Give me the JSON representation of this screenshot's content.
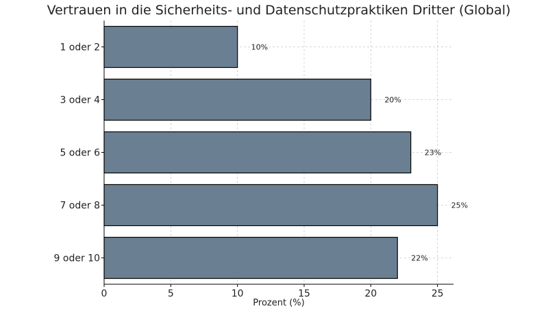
{
  "chart_data": {
    "type": "bar",
    "orientation": "horizontal",
    "title": "Vertrauen in die Sicherheits- und Datenschutzpraktiken Dritter (Global)",
    "xlabel": "Prozent (%)",
    "ylabel": "",
    "categories": [
      "1 oder 2",
      "3 oder 4",
      "5 oder 6",
      "7 oder 8",
      "9 oder 10"
    ],
    "values": [
      10,
      20,
      23,
      25,
      22
    ],
    "data_labels": [
      "10%",
      "20%",
      "23%",
      "25%",
      "22%"
    ],
    "xlim": [
      0,
      26.2
    ],
    "xticks": [
      0,
      5,
      10,
      15,
      20,
      25
    ],
    "xtick_labels": [
      "0",
      "5",
      "10",
      "15",
      "20",
      "25"
    ],
    "grid": true,
    "bar_color": "#6a7f91"
  }
}
